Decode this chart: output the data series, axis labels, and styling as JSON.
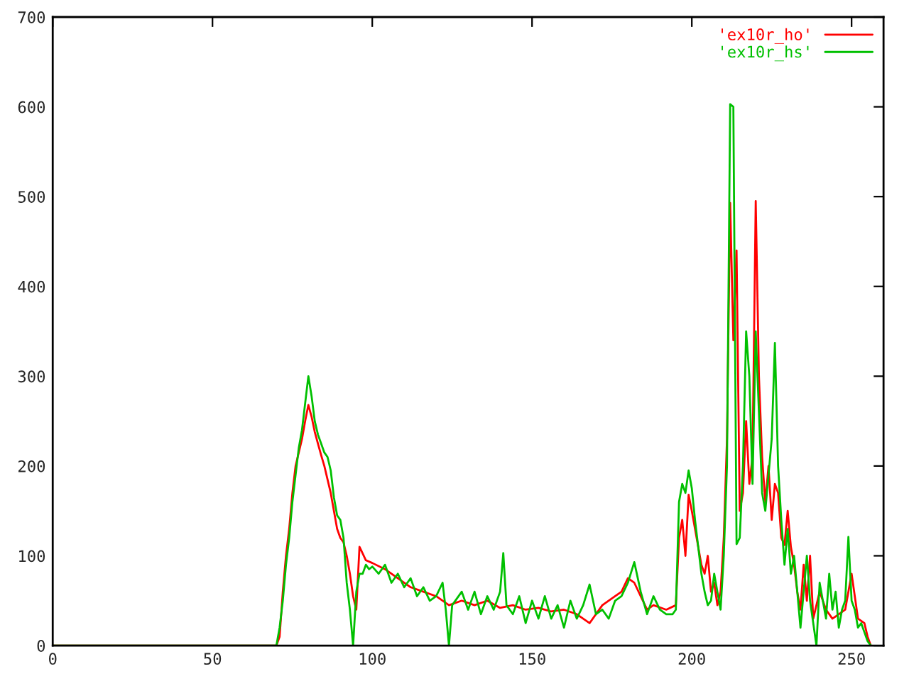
{
  "chart_data": {
    "type": "line",
    "xlim": [
      0,
      260
    ],
    "ylim": [
      0,
      700
    ],
    "xticks": [
      0,
      50,
      100,
      150,
      200,
      250
    ],
    "yticks": [
      0,
      100,
      200,
      300,
      400,
      500,
      600,
      700
    ],
    "grid": false,
    "legend": "top right",
    "marker": "none",
    "line_style": "solid",
    "series": [
      {
        "name": "'ex10r_ho'",
        "color": "#ff0000",
        "x": [
          0,
          69,
          70,
          71,
          72,
          73,
          74,
          75,
          76,
          77,
          78,
          79,
          80,
          81,
          82,
          83,
          84,
          85,
          86,
          87,
          88,
          89,
          90,
          91,
          92,
          93,
          94,
          95,
          96,
          98,
          100,
          104,
          108,
          112,
          116,
          120,
          124,
          128,
          132,
          136,
          140,
          144,
          148,
          152,
          156,
          160,
          164,
          168,
          172,
          176,
          178,
          180,
          182,
          184,
          186,
          188,
          192,
          195,
          196,
          197,
          198,
          199,
          200,
          201,
          202,
          203,
          204,
          205,
          206,
          207,
          208,
          209,
          210,
          211,
          212,
          213,
          214,
          215,
          216,
          217,
          218,
          219,
          220,
          221,
          222,
          223,
          224,
          225,
          226,
          227,
          228,
          229,
          230,
          231,
          232,
          233,
          234,
          235,
          236,
          237,
          238,
          240,
          242,
          244,
          246,
          248,
          250,
          252,
          254,
          255,
          256
        ],
        "values": [
          0,
          0,
          0,
          10,
          60,
          100,
          130,
          170,
          200,
          215,
          230,
          250,
          268,
          255,
          238,
          225,
          212,
          200,
          185,
          170,
          150,
          130,
          120,
          115,
          100,
          80,
          55,
          40,
          110,
          95,
          92,
          85,
          75,
          65,
          60,
          55,
          45,
          50,
          45,
          50,
          42,
          45,
          40,
          42,
          38,
          40,
          35,
          25,
          45,
          55,
          60,
          75,
          70,
          55,
          40,
          45,
          40,
          45,
          120,
          140,
          100,
          168,
          150,
          130,
          110,
          90,
          80,
          100,
          60,
          70,
          45,
          60,
          120,
          230,
          493,
          340,
          440,
          150,
          170,
          250,
          180,
          210,
          495,
          300,
          210,
          160,
          200,
          140,
          180,
          170,
          120,
          112,
          150,
          110,
          90,
          60,
          40,
          90,
          50,
          100,
          30,
          60,
          40,
          30,
          35,
          40,
          80,
          30,
          25,
          10,
          0
        ]
      },
      {
        "name": "'ex10r_hs'",
        "color": "#00c000",
        "x": [
          0,
          69,
          70,
          71,
          72,
          73,
          74,
          75,
          76,
          77,
          78,
          79,
          80,
          81,
          82,
          83,
          84,
          85,
          86,
          87,
          88,
          89,
          90,
          91,
          92,
          93,
          94,
          95,
          96,
          97,
          98,
          99,
          100,
          102,
          104,
          106,
          108,
          110,
          112,
          114,
          116,
          118,
          120,
          122,
          123,
          124,
          125,
          128,
          130,
          132,
          134,
          136,
          138,
          140,
          141,
          142,
          144,
          146,
          148,
          150,
          152,
          154,
          156,
          158,
          160,
          162,
          164,
          166,
          168,
          170,
          172,
          174,
          176,
          178,
          180,
          182,
          184,
          186,
          188,
          190,
          192,
          194,
          195,
          196,
          197,
          198,
          199,
          200,
          201,
          202,
          203,
          204,
          205,
          206,
          207,
          208,
          209,
          210,
          211,
          212,
          213,
          214,
          215,
          216,
          217,
          218,
          219,
          220,
          221,
          222,
          223,
          224,
          225,
          226,
          227,
          228,
          229,
          230,
          231,
          232,
          233,
          234,
          235,
          236,
          237,
          239,
          240,
          241,
          242,
          243,
          244,
          245,
          246,
          247,
          248,
          249,
          250,
          251,
          252,
          253,
          254,
          255,
          256
        ],
        "values": [
          0,
          0,
          0,
          20,
          50,
          90,
          120,
          160,
          190,
          220,
          240,
          270,
          300,
          278,
          250,
          235,
          225,
          215,
          210,
          195,
          165,
          145,
          140,
          120,
          70,
          40,
          0,
          60,
          80,
          80,
          90,
          85,
          88,
          80,
          90,
          70,
          80,
          65,
          75,
          55,
          65,
          50,
          55,
          70,
          40,
          0,
          45,
          60,
          40,
          60,
          35,
          55,
          40,
          60,
          103,
          45,
          35,
          55,
          25,
          50,
          30,
          55,
          30,
          45,
          20,
          50,
          30,
          45,
          68,
          35,
          40,
          30,
          50,
          55,
          70,
          93,
          60,
          35,
          55,
          40,
          35,
          35,
          40,
          160,
          180,
          170,
          195,
          175,
          140,
          110,
          80,
          60,
          45,
          50,
          80,
          60,
          40,
          100,
          200,
          603,
          600,
          113,
          120,
          200,
          350,
          300,
          180,
          350,
          260,
          170,
          150,
          190,
          230,
          337,
          200,
          140,
          90,
          130,
          80,
          100,
          60,
          20,
          60,
          100,
          50,
          0,
          70,
          50,
          30,
          80,
          40,
          60,
          20,
          40,
          50,
          121,
          50,
          40,
          20,
          25,
          15,
          5,
          0
        ]
      }
    ]
  }
}
